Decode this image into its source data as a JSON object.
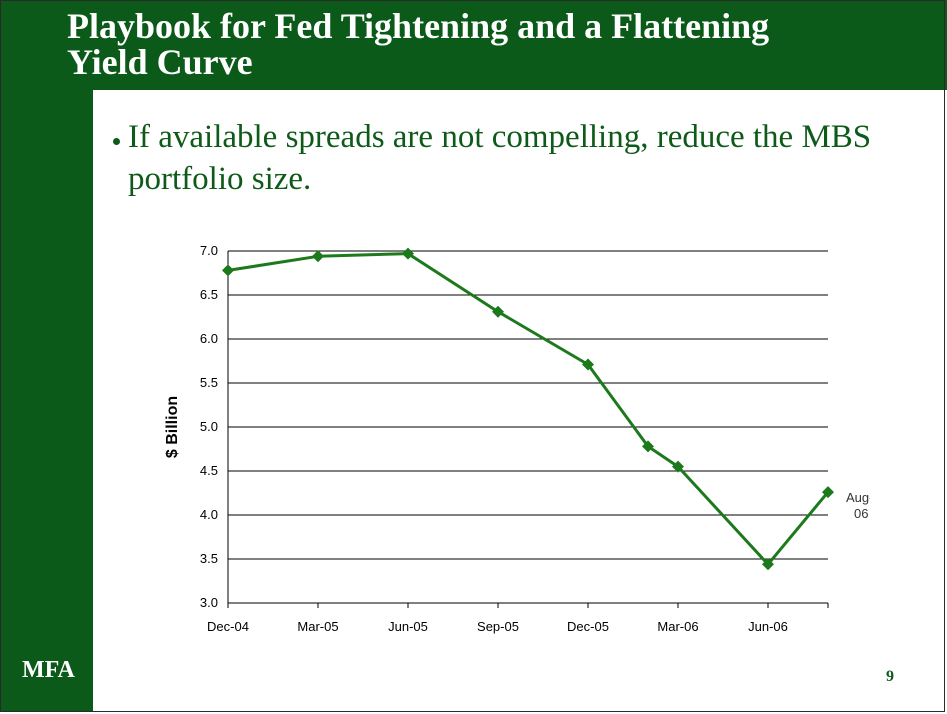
{
  "slide": {
    "title_line1": "Playbook for Fed Tightening and a Flattening",
    "title_line2": "Yield Curve",
    "bullet": "If available spreads are not compelling, reduce the MBS portfolio size.",
    "logo": "MFA",
    "page_number": "9"
  },
  "colors": {
    "brand_green": "#0b5a1a",
    "series_green": "#1c7a1c"
  },
  "chart_data": {
    "type": "line",
    "title": "",
    "xlabel": "",
    "ylabel": "$ Billion",
    "ylim": [
      3.0,
      7.0
    ],
    "yticks": [
      "3.0",
      "3.5",
      "4.0",
      "4.5",
      "5.0",
      "5.5",
      "6.0",
      "6.5",
      "7.0"
    ],
    "xticks": [
      "Dec-04",
      "Mar-05",
      "Jun-05",
      "Sep-05",
      "Dec-05",
      "Mar-06",
      "Jun-06"
    ],
    "grid": "horizontal",
    "series": [
      {
        "x": [
          "Dec-04",
          "Mar-05",
          "Jun-05",
          "Sep-05",
          "Dec-05",
          "Feb-06",
          "Mar-06",
          "Jun-06",
          "Aug-06"
        ],
        "values": [
          6.78,
          6.94,
          6.97,
          6.31,
          5.71,
          4.78,
          4.55,
          3.44,
          4.26
        ]
      }
    ],
    "annotations": [
      {
        "text_line1": "Aug-",
        "text_line2": "06",
        "point": "Aug-06"
      }
    ]
  }
}
